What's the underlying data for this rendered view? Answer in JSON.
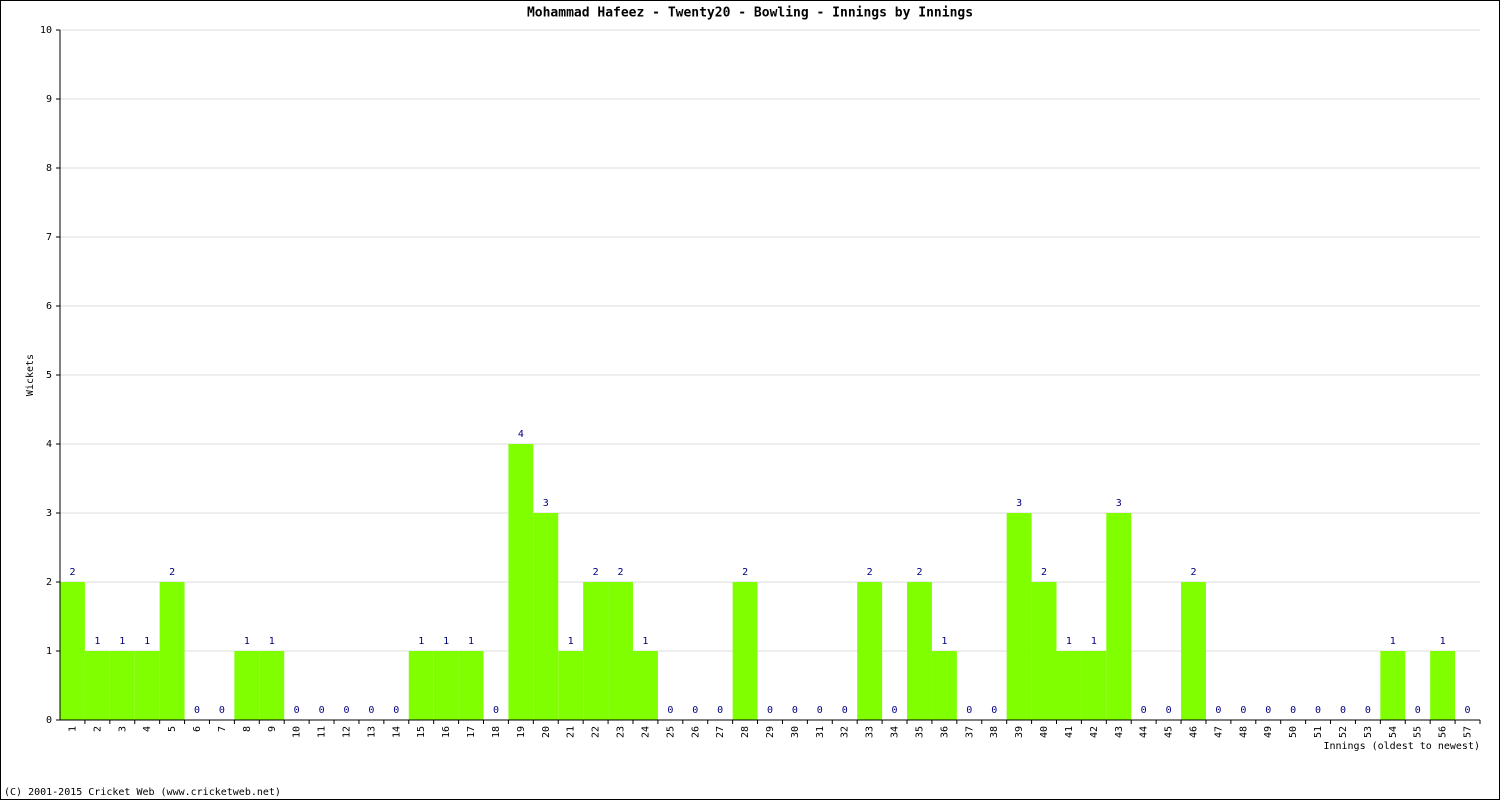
{
  "chart_data": {
    "type": "bar",
    "title": "Mohammad Hafeez - Twenty20 - Bowling - Innings by Innings",
    "y_label": "Wickets",
    "x_label": "Innings (oldest to newest)",
    "footer": "(C) 2001-2015 Cricket Web (www.cricketweb.net)",
    "categories": [
      "1",
      "2",
      "3",
      "4",
      "5",
      "6",
      "7",
      "8",
      "9",
      "10",
      "11",
      "12",
      "13",
      "14",
      "15",
      "16",
      "17",
      "18",
      "19",
      "20",
      "21",
      "22",
      "23",
      "24",
      "25",
      "26",
      "27",
      "28",
      "29",
      "30",
      "31",
      "32",
      "33",
      "34",
      "35",
      "36",
      "37",
      "38",
      "39",
      "40",
      "41",
      "42",
      "43",
      "44",
      "45",
      "46",
      "47",
      "48",
      "49",
      "50",
      "51",
      "52",
      "53",
      "54",
      "55",
      "56",
      "57"
    ],
    "values": [
      2,
      1,
      1,
      1,
      2,
      0,
      0,
      1,
      1,
      0,
      0,
      0,
      0,
      0,
      1,
      1,
      1,
      0,
      4,
      3,
      1,
      2,
      2,
      1,
      0,
      0,
      0,
      2,
      0,
      0,
      0,
      0,
      2,
      0,
      2,
      1,
      0,
      0,
      3,
      2,
      1,
      1,
      3,
      0,
      0,
      2,
      0,
      0,
      0,
      0,
      0,
      0,
      0,
      1,
      0,
      1,
      0
    ],
    "color": "#7fff00",
    "label_color": "#000080",
    "ylim": [
      0,
      10
    ],
    "yticks": [
      0,
      1,
      2,
      3,
      4,
      5,
      6,
      7,
      8,
      9,
      10
    ],
    "grid": true
  }
}
